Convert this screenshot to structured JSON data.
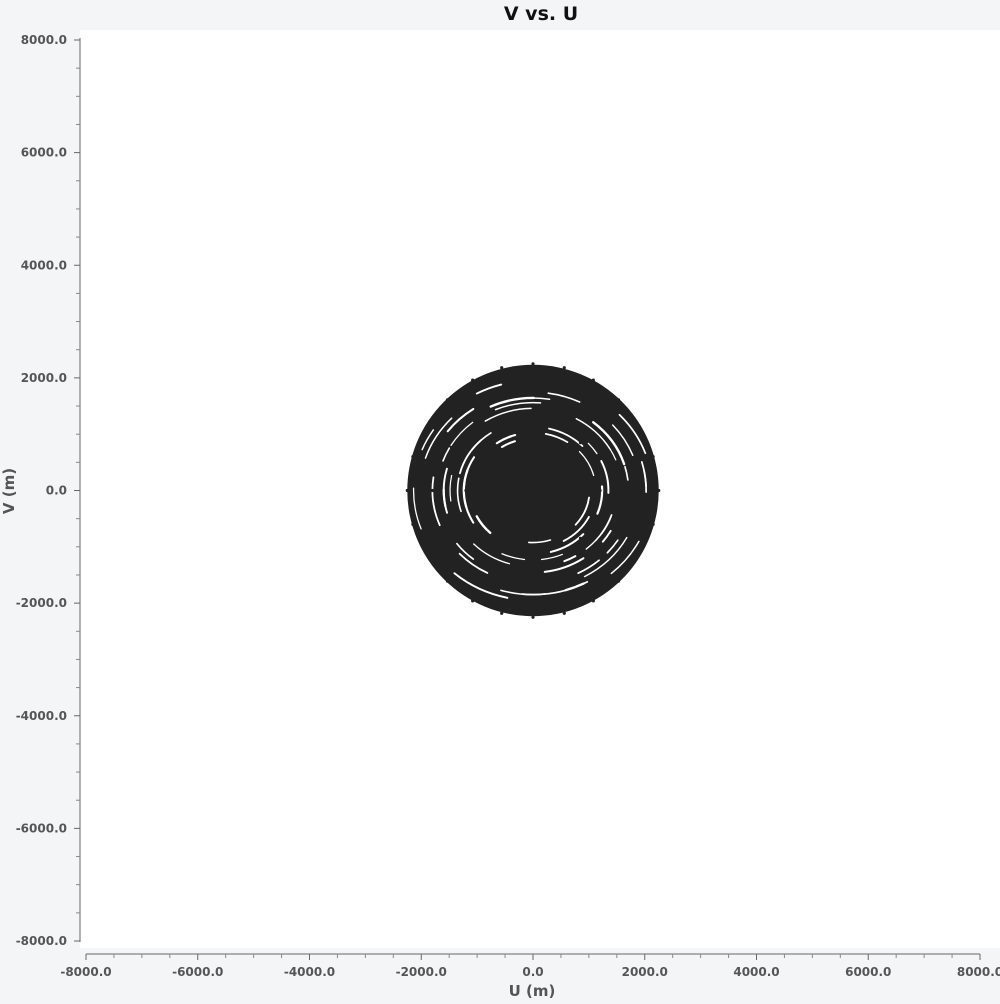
{
  "chart_data": {
    "type": "scatter",
    "title": "V vs. U",
    "xlabel": "U (m)",
    "ylabel": "V (m)",
    "xlim": [
      -8000,
      8000
    ],
    "ylim": [
      -8000,
      8000
    ],
    "x_ticks": [
      -8000,
      -6000,
      -4000,
      -2000,
      0,
      2000,
      4000,
      6000,
      8000
    ],
    "x_tick_labels": [
      "-8000.0",
      "-6000.0",
      "-4000.0",
      "-2000.0",
      "0.0",
      "2000.0",
      "4000.0",
      "6000.0",
      "8000.0"
    ],
    "y_ticks": [
      8000,
      6000,
      4000,
      2000,
      0,
      -2000,
      -4000,
      -6000,
      -8000
    ],
    "y_tick_labels": [
      "8000.0",
      "6000.0",
      "4000.0",
      "2000.0",
      "0.0",
      "-2000.0",
      "-4000.0",
      "-6000.0",
      "-8000.0"
    ],
    "grid": false,
    "marker_color": "#222222",
    "series": [
      {
        "points": [
          [
            0,
            2250
          ],
          [
            560,
            2180
          ],
          [
            1080,
            1960
          ],
          [
            1530,
            1610
          ],
          [
            1880,
            1150
          ],
          [
            2150,
            600
          ],
          [
            2250,
            0
          ],
          [
            2150,
            -600
          ],
          [
            1880,
            -1150
          ],
          [
            1530,
            -1610
          ],
          [
            1080,
            -1960
          ],
          [
            560,
            -2180
          ],
          [
            0,
            -2250
          ],
          [
            -560,
            -2180
          ],
          [
            -1080,
            -1960
          ],
          [
            -1530,
            -1610
          ],
          [
            -1880,
            -1150
          ],
          [
            -2150,
            -600
          ],
          [
            -2250,
            0
          ],
          [
            -2150,
            600
          ],
          [
            -1880,
            1150
          ],
          [
            -1530,
            1610
          ],
          [
            -1080,
            1960
          ],
          [
            -560,
            2180
          ],
          [
            0,
            1800
          ],
          [
            900,
            1560
          ],
          [
            1560,
            900
          ],
          [
            1800,
            0
          ],
          [
            1560,
            -900
          ],
          [
            900,
            -1560
          ],
          [
            0,
            -1800
          ],
          [
            -900,
            -1560
          ],
          [
            -1560,
            -900
          ],
          [
            -1800,
            0
          ],
          [
            -1560,
            900
          ],
          [
            -900,
            1560
          ],
          [
            0,
            1200
          ],
          [
            850,
            850
          ],
          [
            1200,
            0
          ],
          [
            850,
            -850
          ],
          [
            0,
            -1200
          ],
          [
            -850,
            -850
          ],
          [
            -1200,
            0
          ],
          [
            -850,
            850
          ],
          [
            0,
            600
          ],
          [
            600,
            0
          ],
          [
            0,
            -600
          ],
          [
            -600,
            0
          ],
          [
            0,
            0
          ]
        ]
      }
    ]
  }
}
